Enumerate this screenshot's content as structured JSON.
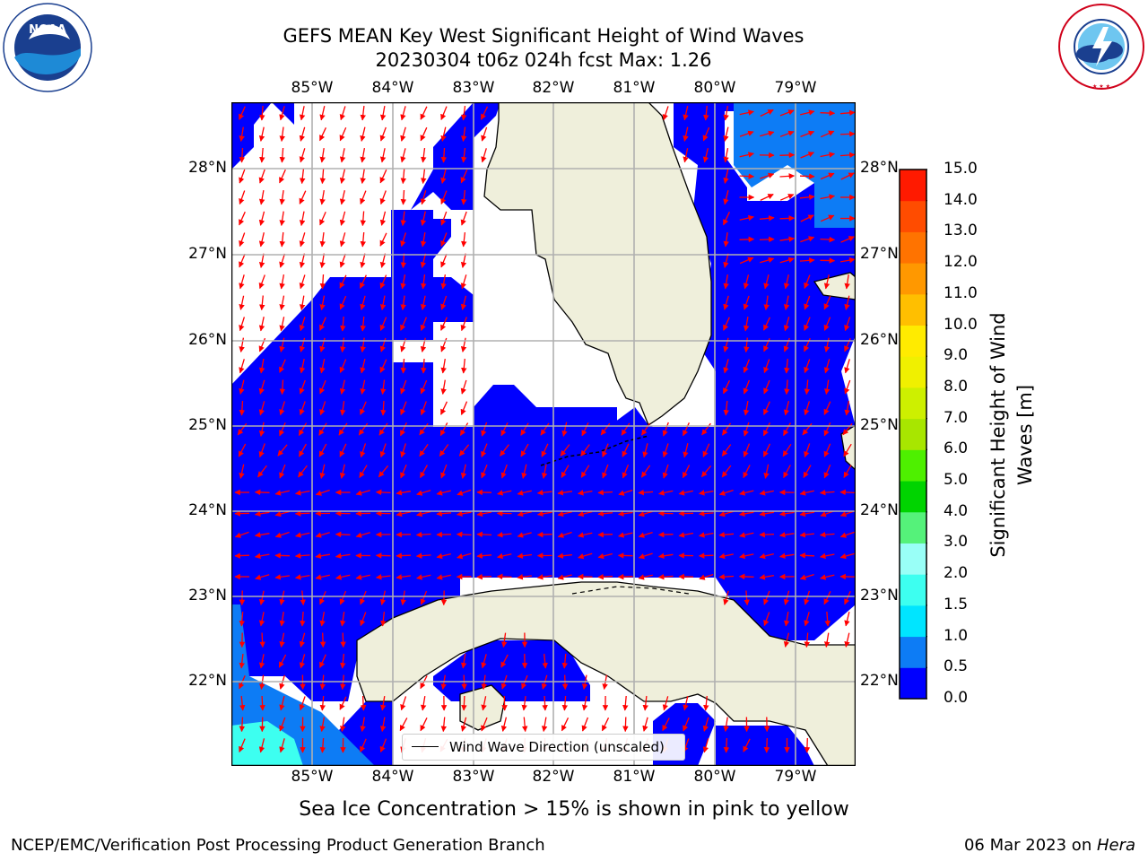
{
  "header": {
    "title_line1": "GEFS MEAN Key West Significant Height of Wind Waves",
    "title_line2": "20230304 t06z 024h fcst   Max: 1.26"
  },
  "logos": {
    "noaa_text": "NOAA",
    "noaa_ring": "NATIONAL OCEANIC AND ATMOSPHERIC ADMINISTRATION · U.S. DEPARTMENT OF COMMERCE",
    "nws_ring": "NATIONAL WEATHER SERVICE"
  },
  "map": {
    "lon_labels": [
      "85°W",
      "84°W",
      "83°W",
      "82°W",
      "81°W",
      "80°W",
      "79°W"
    ],
    "lat_labels": [
      "28°N",
      "27°N",
      "26°N",
      "25°N",
      "24°N",
      "23°N",
      "22°N"
    ],
    "legend_label": "Wind Wave Direction (unscaled)"
  },
  "colorbar": {
    "label": "Significant Height of Wind Waves [m]",
    "ticks": [
      "15.0",
      "14.0",
      "13.0",
      "12.0",
      "11.0",
      "10.0",
      "9.0",
      "8.0",
      "7.0",
      "6.0",
      "5.0",
      "4.0",
      "3.0",
      "2.0",
      "1.5",
      "1.0",
      "0.5",
      "0.0"
    ],
    "colors": [
      "#0000ff",
      "#0d7cf5",
      "#00e5ff",
      "#3dfff0",
      "#99fff7",
      "#55f27a",
      "#00d400",
      "#4ef000",
      "#a8e600",
      "#cdf000",
      "#f0f000",
      "#ffeb00",
      "#ffbf00",
      "#ff9800",
      "#ff7300",
      "#ff4c00",
      "#ff1a00"
    ]
  },
  "footer": {
    "note": "Sea Ice Concentration > 15% is shown in pink to yellow",
    "left": "NCEP/EMC/Verification Post Processing Product Generation Branch",
    "right_date": "06 Mar 2023 on ",
    "right_host": "Hera"
  },
  "style": {
    "wave_color": "#0000ff",
    "wave_light": "#0d7cf5",
    "wave_cyan": "#3dfff0",
    "land": "#efefdb",
    "arrow": "#ff0000",
    "grid": "#b0b0b0"
  }
}
